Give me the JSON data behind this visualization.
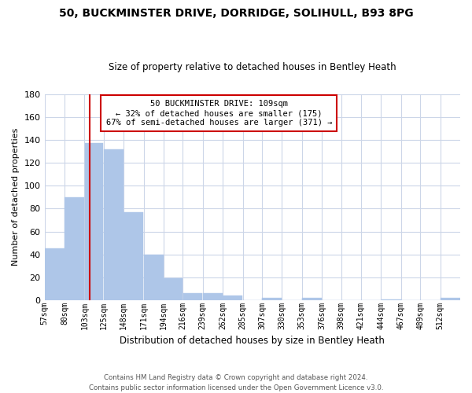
{
  "title": "50, BUCKMINSTER DRIVE, DORRIDGE, SOLIHULL, B93 8PG",
  "subtitle": "Size of property relative to detached houses in Bentley Heath",
  "xlabel": "Distribution of detached houses by size in Bentley Heath",
  "ylabel": "Number of detached properties",
  "bar_labels": [
    "57sqm",
    "80sqm",
    "103sqm",
    "125sqm",
    "148sqm",
    "171sqm",
    "194sqm",
    "216sqm",
    "239sqm",
    "262sqm",
    "285sqm",
    "307sqm",
    "330sqm",
    "353sqm",
    "376sqm",
    "398sqm",
    "421sqm",
    "444sqm",
    "467sqm",
    "489sqm",
    "512sqm"
  ],
  "bar_values": [
    45,
    90,
    137,
    132,
    77,
    40,
    19,
    6,
    6,
    4,
    0,
    2,
    0,
    2,
    0,
    0,
    0,
    1,
    0,
    0,
    2
  ],
  "bar_color": "#aec6e8",
  "bar_edge_color": "#aec6e8",
  "ylim": [
    0,
    180
  ],
  "yticks": [
    0,
    20,
    40,
    60,
    80,
    100,
    120,
    140,
    160,
    180
  ],
  "vline_x": 109,
  "vline_color": "#cc0000",
  "annotation_title": "50 BUCKMINSTER DRIVE: 109sqm",
  "annotation_line1": "← 32% of detached houses are smaller (175)",
  "annotation_line2": "67% of semi-detached houses are larger (371) →",
  "annotation_box_color": "#ffffff",
  "annotation_box_edge": "#cc0000",
  "footer_line1": "Contains HM Land Registry data © Crown copyright and database right 2024.",
  "footer_line2": "Contains public sector information licensed under the Open Government Licence v3.0.",
  "bin_edges": [
    57,
    80,
    103,
    125,
    148,
    171,
    194,
    216,
    239,
    262,
    285,
    307,
    330,
    353,
    376,
    398,
    421,
    444,
    467,
    489,
    512,
    535
  ],
  "background_color": "#ffffff",
  "grid_color": "#ccd6e8"
}
